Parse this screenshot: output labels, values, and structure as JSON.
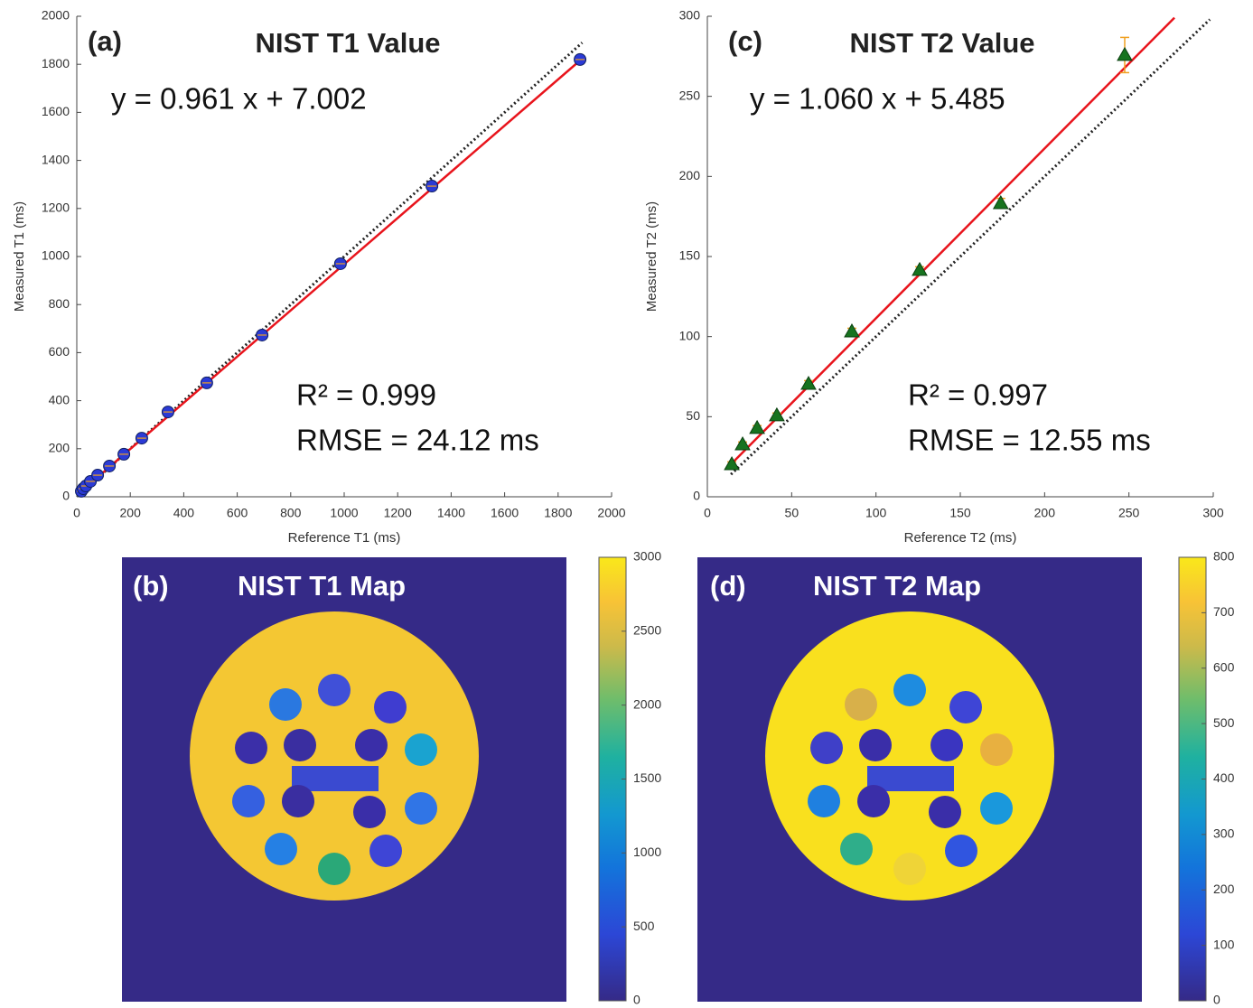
{
  "chart_data": [
    {
      "type": "scatter",
      "panel": "(a)",
      "title": "NIST T1 Value",
      "annotations": [
        "y = 0.961 x + 7.002",
        "R² = 0.999",
        "RMSE = 24.12 ms"
      ],
      "xlabel": "Reference T1 (ms)",
      "ylabel": "Measured T1 (ms)",
      "xlim": [
        0,
        2000
      ],
      "xticks": [
        0,
        200,
        400,
        600,
        800,
        1000,
        1200,
        1400,
        1600,
        1800,
        2000
      ],
      "ylim": [
        0,
        2000
      ],
      "yticks": [
        0,
        200,
        400,
        600,
        800,
        1000,
        1200,
        1400,
        1600,
        1800,
        2000
      ],
      "series": [
        {
          "kind": "line",
          "style": "dotted",
          "color": "#222222",
          "x": [
            15,
            1890
          ],
          "values": [
            15,
            1890
          ]
        },
        {
          "kind": "line",
          "style": "solid",
          "color": "#e8141c",
          "x": [
            15,
            1882
          ],
          "values": [
            21,
            1816
          ]
        },
        {
          "kind": "points",
          "marker": "circle",
          "color": "#2b3ad6",
          "x": [
            17,
            24,
            34,
            51,
            78,
            122,
            176,
            243,
            341,
            486,
            693,
            986,
            1328,
            1882
          ],
          "values": [
            23,
            34,
            45,
            64,
            90,
            128,
            177,
            244,
            353,
            474,
            673,
            970,
            1293,
            1820
          ]
        }
      ]
    },
    {
      "type": "image",
      "panel": "(b)",
      "title": "NIST T1 Map",
      "clim": [
        0,
        3000
      ],
      "cticks": [
        0,
        500,
        1000,
        1500,
        2000,
        2500,
        3000
      ]
    },
    {
      "type": "scatter",
      "panel": "(c)",
      "title": "NIST T2 Value",
      "annotations": [
        "y = 1.060 x + 5.485",
        "R² = 0.997",
        "RMSE = 12.55 ms"
      ],
      "xlabel": "Reference T2 (ms)",
      "ylabel": "Measured T2 (ms)",
      "xlim": [
        0,
        300
      ],
      "xticks": [
        0,
        50,
        100,
        150,
        200,
        250,
        300
      ],
      "ylim": [
        0,
        300
      ],
      "yticks": [
        0,
        50,
        100,
        150,
        200,
        250,
        300
      ],
      "series": [
        {
          "kind": "line",
          "style": "dotted",
          "color": "#222222",
          "x": [
            14,
            298
          ],
          "values": [
            14,
            298
          ]
        },
        {
          "kind": "line",
          "style": "solid",
          "color": "#e8141c",
          "x": [
            14,
            277
          ],
          "values": [
            20.3,
            299.1
          ]
        },
        {
          "kind": "points",
          "marker": "triangle",
          "color": "#17731f",
          "x": [
            14.5,
            20.9,
            29.5,
            41.2,
            60,
            85.7,
            125.9,
            174,
            247.5
          ],
          "values": [
            20.3,
            32.7,
            42.9,
            50.8,
            70.5,
            103.2,
            141.6,
            183.3,
            275.8
          ],
          "errors": [
            1.5,
            1.5,
            1.5,
            1.5,
            2,
            2,
            2,
            3,
            11
          ]
        }
      ]
    },
    {
      "type": "image",
      "panel": "(d)",
      "title": "NIST T2 Map",
      "clim": [
        0,
        800
      ],
      "cticks": [
        0,
        100,
        200,
        300,
        400,
        500,
        600,
        700,
        800
      ]
    }
  ]
}
